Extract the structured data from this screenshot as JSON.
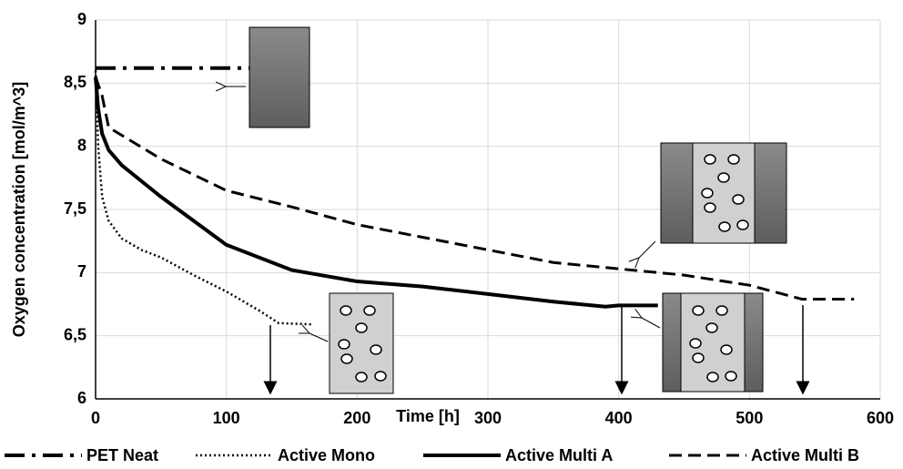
{
  "chart_data": {
    "type": "line",
    "x_label": "Time [h]",
    "y_label": "Oxygen concentration [mol/m^3]",
    "xlim": [
      0,
      600
    ],
    "xticks": [
      0,
      100,
      200,
      300,
      400,
      500,
      600
    ],
    "ylim": [
      6,
      9
    ],
    "yticks": [
      6,
      {
        "value": 6.5,
        "label": "6,5"
      },
      7,
      {
        "value": 7.5,
        "label": "7,5"
      },
      8,
      {
        "value": 8.5,
        "label": "8,5"
      },
      9
    ],
    "grid": true,
    "legend": "bottom",
    "series": [
      {
        "name": "PET Neat",
        "color": "#000000",
        "style": "dashdot",
        "x": [
          0,
          120
        ],
        "values": [
          8.62,
          8.62
        ]
      },
      {
        "name": "Active Mono",
        "color": "#000000",
        "style": "dotted",
        "x": [
          0,
          1,
          2,
          5,
          10,
          20,
          35,
          50,
          75,
          100,
          125,
          140,
          165
        ],
        "values": [
          8.6,
          8.3,
          8.0,
          7.6,
          7.41,
          7.27,
          7.18,
          7.12,
          6.98,
          6.85,
          6.7,
          6.6,
          6.59
        ]
      },
      {
        "name": "Active Multi A",
        "color": "#000000",
        "style": "solid",
        "x": [
          0,
          2,
          5,
          10,
          20,
          50,
          100,
          150,
          200,
          250,
          300,
          350,
          390,
          400,
          430
        ],
        "values": [
          8.55,
          8.3,
          8.1,
          7.97,
          7.85,
          7.6,
          7.22,
          7.02,
          6.93,
          6.89,
          6.83,
          6.77,
          6.73,
          6.74,
          6.74
        ]
      },
      {
        "name": "Active Multi B",
        "color": "#000000",
        "style": "dashed",
        "x": [
          0,
          5,
          10,
          50,
          100,
          150,
          200,
          250,
          300,
          350,
          400,
          450,
          500,
          540,
          580
        ],
        "values": [
          8.55,
          8.4,
          8.15,
          7.9,
          7.65,
          7.52,
          7.38,
          7.28,
          7.18,
          7.08,
          7.03,
          6.98,
          6.9,
          6.79,
          6.79
        ]
      }
    ]
  }
}
